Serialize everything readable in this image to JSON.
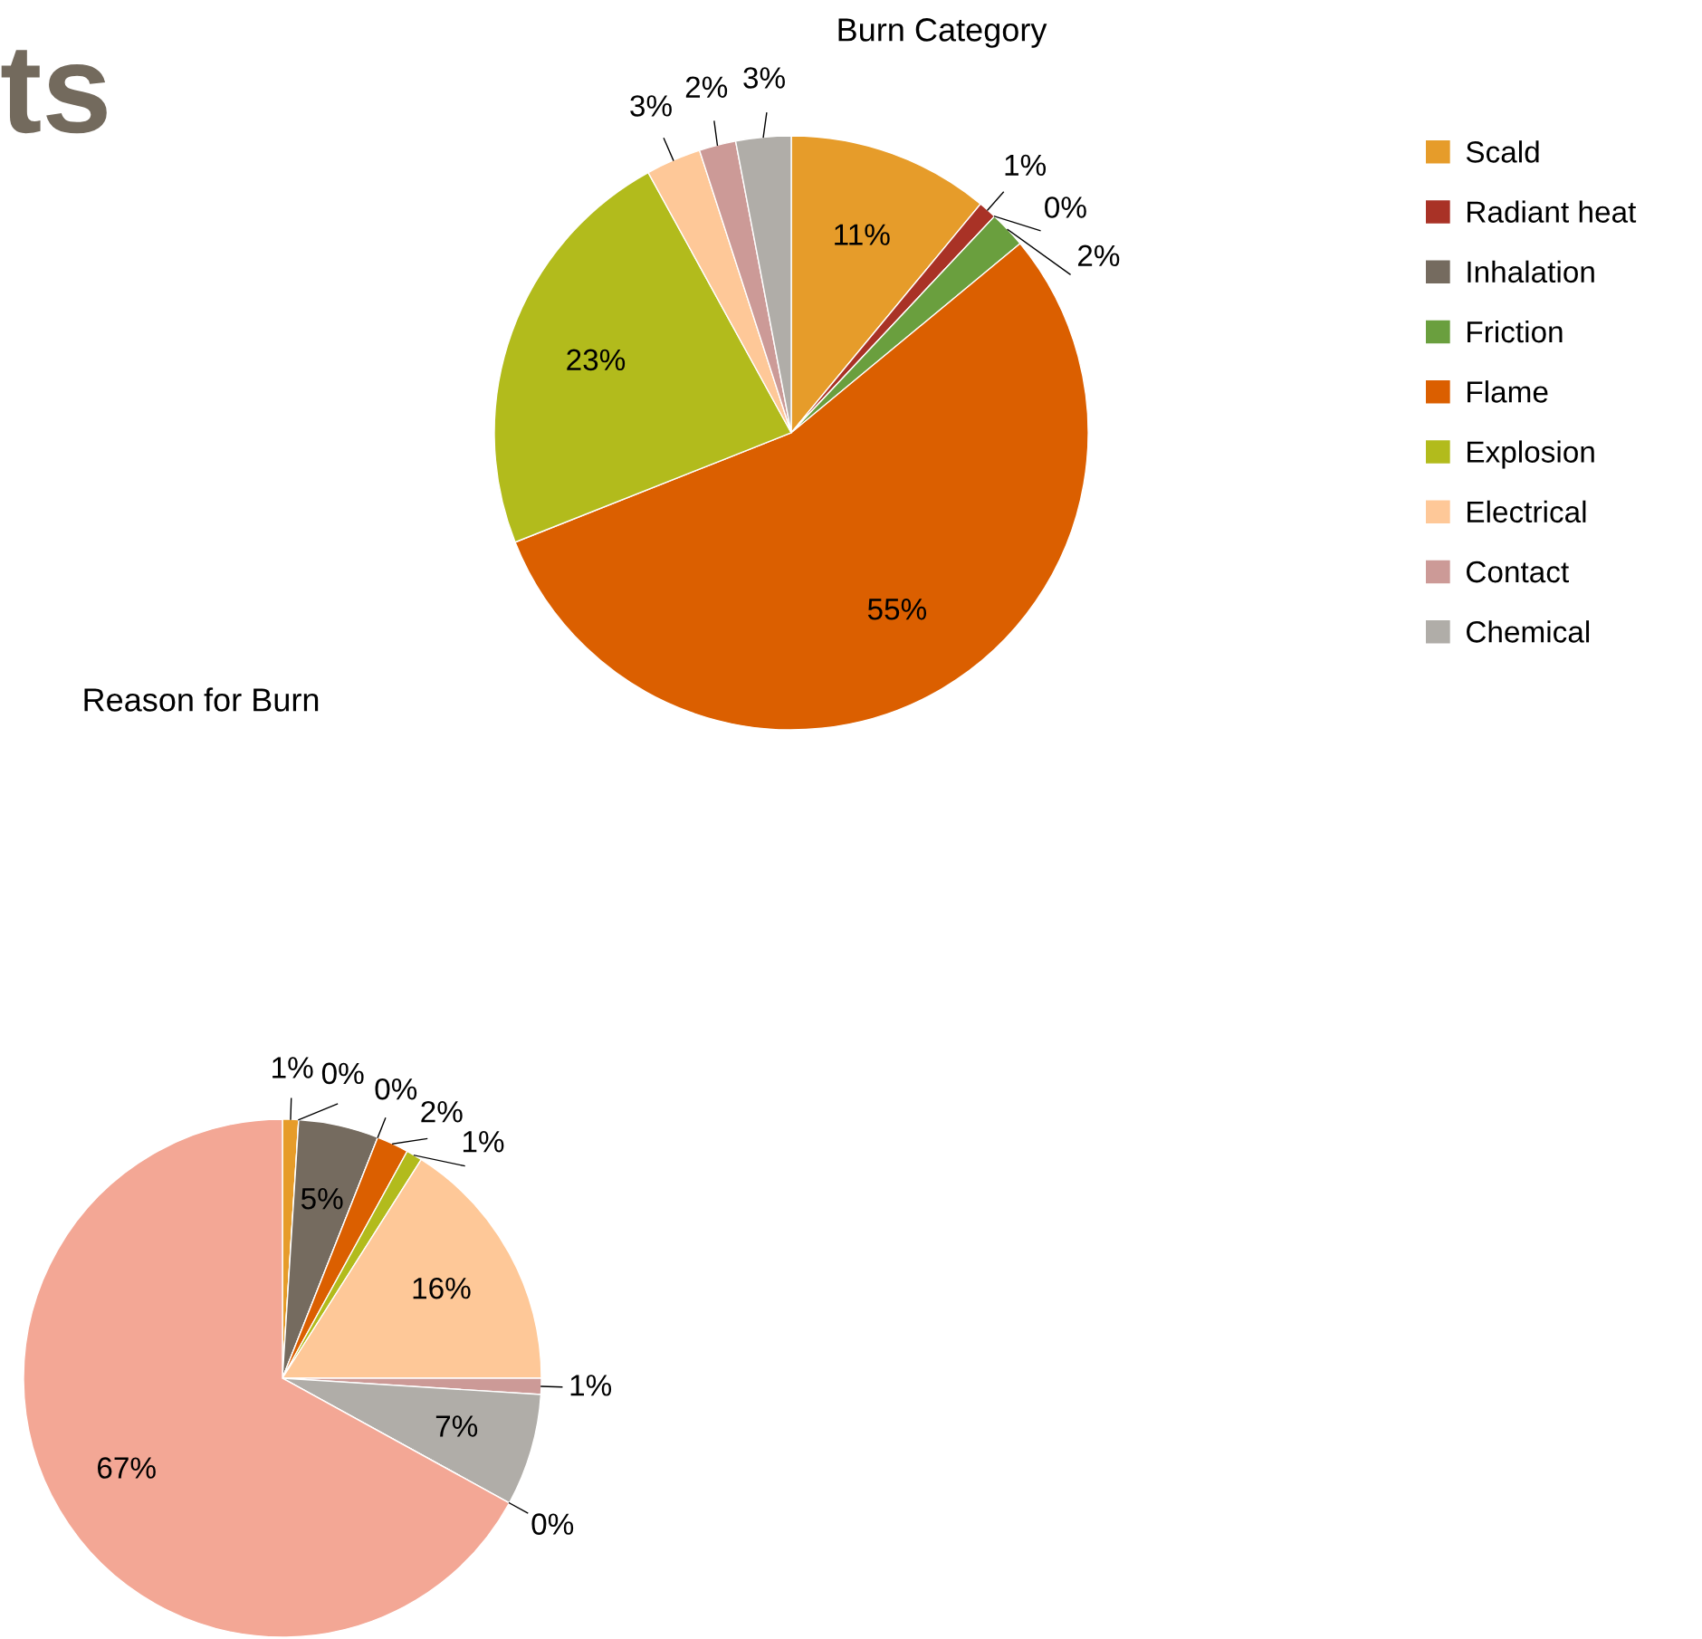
{
  "chart_data": [
    {
      "type": "pie",
      "title": "Burn Category",
      "annotations": [
        "ts"
      ],
      "categories": [
        "Scald",
        "Radiant heat",
        "Inhalation",
        "Friction",
        "Flame",
        "Explosion",
        "Electrical",
        "Contact",
        "Chemical"
      ],
      "values": [
        11,
        1,
        0,
        2,
        55,
        23,
        3,
        2,
        3
      ],
      "value_labels": [
        "11%",
        "1%",
        "0%",
        "2%",
        "55%",
        "23%",
        "3%",
        "2%",
        "3%"
      ],
      "colors": [
        "#e69c2a",
        "#a93226",
        "#756b5f",
        "#6a9f3e",
        "#db5f00",
        "#b2bb1c",
        "#fec898",
        "#cc9a97",
        "#b0ada8"
      ],
      "legend": "right"
    },
    {
      "type": "pie",
      "title": "Reason for Burn",
      "categories": [
        null,
        null,
        null,
        null,
        null,
        null,
        null,
        null,
        null,
        null,
        null
      ],
      "values": [
        1,
        0,
        5,
        0,
        2,
        1,
        16,
        1,
        7,
        0,
        67
      ],
      "value_labels": [
        "1%",
        "0%",
        "5%",
        "0%",
        "2%",
        "1%",
        "16%",
        "1%",
        "7%",
        "0%",
        "67%"
      ],
      "colors": [
        "#e69c2a",
        "#a93226",
        "#756b5f",
        "#6a9f3e",
        "#db5f00",
        "#b2bb1c",
        "#fec898",
        "#cc9a97",
        "#b0ada8",
        "#a6d39a",
        "#f3a795"
      ]
    }
  ]
}
